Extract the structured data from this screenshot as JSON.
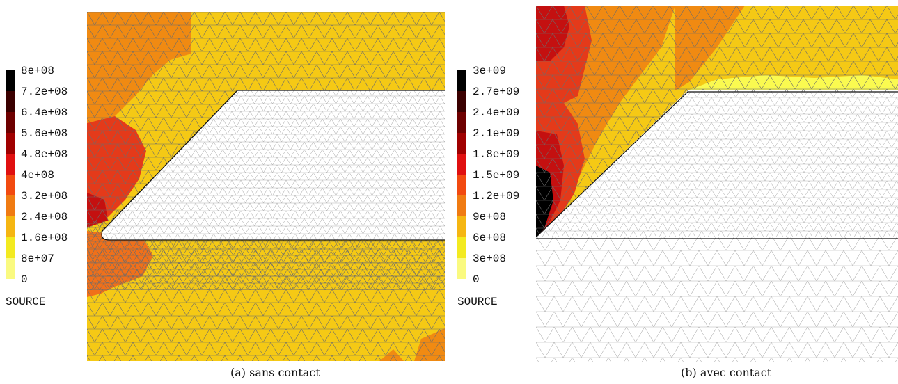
{
  "figure": {
    "panels": [
      {
        "id": "a",
        "caption": "(a) sans contact",
        "legend": {
          "title": "SOURCE",
          "labels": [
            "8e+08",
            "7.2e+08",
            "6.4e+08",
            "5.6e+08",
            "4.8e+08",
            "4e+08",
            "3.2e+08",
            "2.4e+08",
            "1.6e+08",
            "8e+07",
            "0"
          ],
          "colors": [
            "#000000",
            "#3a0000",
            "#6e0000",
            "#a00000",
            "#e01010",
            "#f24a10",
            "#f07b12",
            "#f5b612",
            "#f3ea20",
            "#fafa80",
            "#ffffff"
          ]
        }
      },
      {
        "id": "b",
        "caption": "(b) avec contact",
        "legend": {
          "title": "SOURCE",
          "labels": [
            "3e+09",
            "2.7e+09",
            "2.4e+09",
            "2.1e+09",
            "1.8e+09",
            "1.5e+09",
            "1.2e+09",
            "9e+08",
            "6e+08",
            "3e+08",
            "0"
          ],
          "colors": [
            "#000000",
            "#3a0000",
            "#6e0000",
            "#a00000",
            "#e01010",
            "#f24a10",
            "#f07b12",
            "#f5b612",
            "#f3ea20",
            "#fafa80",
            "#ffffff"
          ]
        }
      }
    ],
    "mesh_colors": {
      "yellow": "#f5c915",
      "orange": "#f08a12",
      "dark_orange": "#f0701a",
      "red": "#e43a1a",
      "dark_red": "#c41010",
      "black": "#000000",
      "pale_yellow": "#fafa50",
      "white": "#ffffff",
      "edge_dark": "#707070",
      "edge_light": "#b8b8b8"
    }
  }
}
